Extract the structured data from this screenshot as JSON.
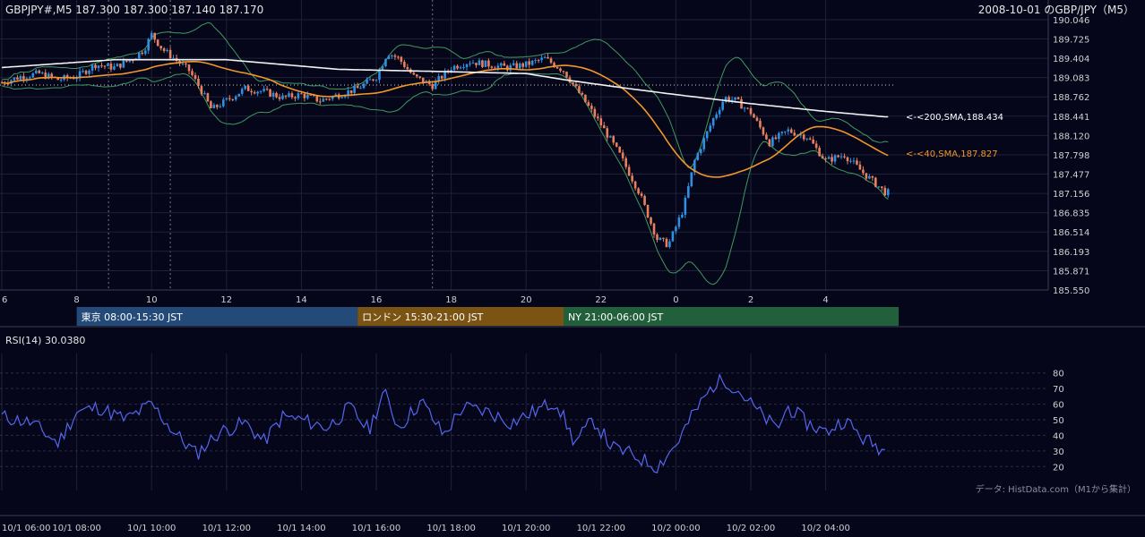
{
  "header": {
    "symbol_line": "GBPJPY#,M5 187.300 187.300 187.140 187.170",
    "title": "2008-10-01 のGBP/JPY（M5）"
  },
  "sessions": [
    {
      "label": "東京 08:00-15:30 JST",
      "color": "#234a78"
    },
    {
      "label": "ロンドン 15:30-21:00 JST",
      "color": "#7b5312"
    },
    {
      "label": "NY 21:00-06:00 JST",
      "color": "#21603b"
    }
  ],
  "sma_labels": {
    "sma200": "<-<200,SMA,188.434",
    "sma40": "<-<40,SMA,187.827"
  },
  "colors": {
    "background": "#05061a",
    "bull": "#2f8fe0",
    "bear": "#e8805e",
    "sma200": "#f2f2f2",
    "sma40": "#f0962a",
    "bollinger": "#3f9a5e",
    "rsi": "#5566ee",
    "grid": "#1e2138"
  },
  "rsi": {
    "label": "RSI(14) 30.0380"
  },
  "footer": {
    "source": "データ: HistData.com（M1から集計）"
  },
  "chart_data": [
    {
      "type": "candlestick",
      "title": "2008-10-01 のGBP/JPY（M5）",
      "ylim": [
        185.55,
        190.046
      ],
      "y_ticks": [
        "190.046",
        "189.725",
        "189.404",
        "189.083",
        "188.762",
        "188.441",
        "188.120",
        "187.798",
        "187.477",
        "187.156",
        "186.835",
        "186.514",
        "186.193",
        "185.871",
        "185.550"
      ],
      "x_ticks": [
        "6",
        "8",
        "10",
        "12",
        "14",
        "16",
        "18",
        "20",
        "22",
        "0",
        "2",
        "4"
      ],
      "x_hours": [
        6,
        8,
        10,
        12,
        14,
        16,
        18,
        20,
        22,
        24,
        26,
        28
      ],
      "x_range_hours": [
        6,
        29.67
      ],
      "last_close": 187.17,
      "close_path": [
        [
          6.0,
          189.0
        ],
        [
          6.5,
          189.1
        ],
        [
          7.0,
          189.15
        ],
        [
          7.5,
          189.05
        ],
        [
          8.0,
          189.1
        ],
        [
          8.5,
          189.3
        ],
        [
          9.0,
          189.25
        ],
        [
          9.5,
          189.4
        ],
        [
          9.8,
          189.55
        ],
        [
          10.0,
          189.8
        ],
        [
          10.3,
          189.55
        ],
        [
          10.6,
          189.4
        ],
        [
          11.0,
          189.2
        ],
        [
          11.3,
          188.9
        ],
        [
          11.6,
          188.55
        ],
        [
          12.0,
          188.7
        ],
        [
          12.5,
          188.9
        ],
        [
          13.0,
          188.85
        ],
        [
          13.5,
          188.75
        ],
        [
          14.0,
          188.8
        ],
        [
          14.5,
          188.7
        ],
        [
          15.0,
          188.8
        ],
        [
          15.5,
          188.9
        ],
        [
          16.0,
          189.1
        ],
        [
          16.3,
          189.5
        ],
        [
          16.6,
          189.4
        ],
        [
          17.0,
          189.1
        ],
        [
          17.5,
          188.95
        ],
        [
          18.0,
          189.25
        ],
        [
          18.5,
          189.35
        ],
        [
          19.0,
          189.3
        ],
        [
          19.5,
          189.25
        ],
        [
          20.0,
          189.3
        ],
        [
          20.5,
          189.4
        ],
        [
          21.0,
          189.2
        ],
        [
          21.5,
          188.75
        ],
        [
          22.0,
          188.3
        ],
        [
          22.5,
          187.8
        ],
        [
          23.0,
          187.2
        ],
        [
          23.5,
          186.4
        ],
        [
          23.8,
          186.3
        ],
        [
          24.2,
          186.9
        ],
        [
          24.5,
          187.7
        ],
        [
          25.0,
          188.4
        ],
        [
          25.3,
          188.75
        ],
        [
          25.6,
          188.7
        ],
        [
          26.0,
          188.5
        ],
        [
          26.5,
          188.0
        ],
        [
          27.0,
          188.2
        ],
        [
          27.5,
          188.1
        ],
        [
          28.0,
          187.7
        ],
        [
          28.5,
          187.8
        ],
        [
          29.0,
          187.5
        ],
        [
          29.6,
          187.17
        ]
      ]
    },
    {
      "type": "line",
      "title": "RSI(14) 30.0380",
      "ylim": [
        15,
        85
      ],
      "y_ticks": [
        80,
        70,
        60,
        50,
        40,
        30,
        20
      ],
      "x_ticks": [
        "10/1 06:00",
        "10/1 08:00",
        "10/1 10:00",
        "10/1 12:00",
        "10/1 14:00",
        "10/1 16:00",
        "10/1 18:00",
        "10/1 20:00",
        "10/1 22:00",
        "10/2 00:00",
        "10/2 02:00",
        "10/2 04:00"
      ],
      "last_value": 30.038,
      "value_path": [
        [
          6.0,
          52
        ],
        [
          6.8,
          48
        ],
        [
          7.5,
          35
        ],
        [
          8.0,
          55
        ],
        [
          8.6,
          58
        ],
        [
          9.3,
          50
        ],
        [
          10.0,
          60
        ],
        [
          10.6,
          42
        ],
        [
          11.2,
          28
        ],
        [
          11.8,
          42
        ],
        [
          12.5,
          48
        ],
        [
          13.0,
          36
        ],
        [
          13.5,
          52
        ],
        [
          14.0,
          50
        ],
        [
          14.7,
          45
        ],
        [
          15.3,
          58
        ],
        [
          15.8,
          43
        ],
        [
          16.2,
          68
        ],
        [
          16.6,
          45
        ],
        [
          17.2,
          62
        ],
        [
          17.8,
          40
        ],
        [
          18.3,
          58
        ],
        [
          19.0,
          55
        ],
        [
          19.6,
          48
        ],
        [
          20.2,
          55
        ],
        [
          20.8,
          62
        ],
        [
          21.3,
          35
        ],
        [
          21.8,
          50
        ],
        [
          22.3,
          32
        ],
        [
          22.8,
          28
        ],
        [
          23.5,
          20
        ],
        [
          24.0,
          34
        ],
        [
          24.5,
          55
        ],
        [
          25.0,
          72
        ],
        [
          25.3,
          76
        ],
        [
          25.7,
          68
        ],
        [
          26.2,
          55
        ],
        [
          26.7,
          44
        ],
        [
          27.0,
          58
        ],
        [
          27.5,
          48
        ],
        [
          28.0,
          42
        ],
        [
          28.5,
          50
        ],
        [
          29.0,
          38
        ],
        [
          29.6,
          30
        ]
      ]
    }
  ]
}
